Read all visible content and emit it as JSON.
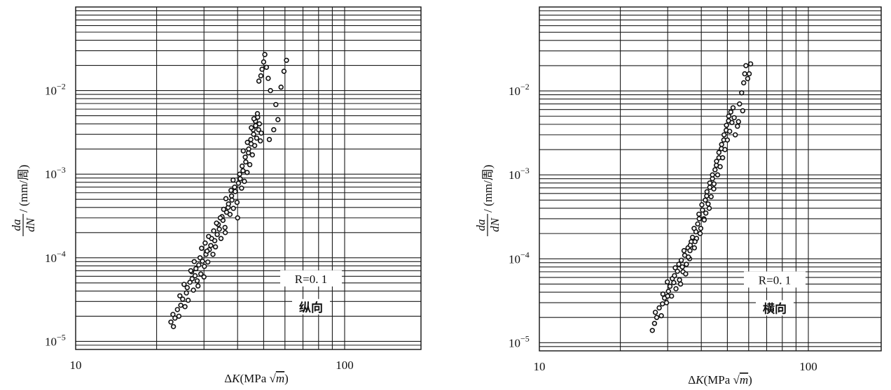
{
  "chart_data": [
    {
      "type": "scatter",
      "xscale": "log",
      "yscale": "log",
      "xlim": [
        10,
        200
      ],
      "ylim": [
        8e-06,
        0.1
      ],
      "xticks": [
        "10",
        "100"
      ],
      "yticks": [
        {
          "base": "10",
          "exp": "−5"
        },
        {
          "base": "10",
          "exp": "−4"
        },
        {
          "base": "10",
          "exp": "−3"
        },
        {
          "base": "10",
          "exp": "−2"
        }
      ],
      "xlabel": {
        "prefix": "Δ",
        "var": "K",
        "unit": "(MPa ",
        "radicand": "m",
        "close": ")"
      },
      "ylabel": {
        "num": "da",
        "den": "dN",
        "unit": " / (mm/周)"
      },
      "annotation": {
        "line1": "R=0. 1",
        "line2": "纵向"
      },
      "grid": true,
      "legend": "none",
      "points": [
        [
          22.6,
          1.7e-05
        ],
        [
          23.1,
          1.5e-05
        ],
        [
          23.4,
          1.9e-05
        ],
        [
          23.0,
          2.1e-05
        ],
        [
          23.9,
          2.4e-05
        ],
        [
          24.2,
          2e-05
        ],
        [
          24.6,
          2.7e-05
        ],
        [
          25.0,
          3.2e-05
        ],
        [
          24.4,
          3.5e-05
        ],
        [
          25.5,
          2.6e-05
        ],
        [
          25.8,
          3.8e-05
        ],
        [
          26.0,
          4.4e-05
        ],
        [
          25.3,
          4.8e-05
        ],
        [
          26.6,
          5.1e-05
        ],
        [
          26.2,
          3.1e-05
        ],
        [
          27.1,
          5.6e-05
        ],
        [
          27.4,
          4.1e-05
        ],
        [
          27.8,
          6.1e-05
        ],
        [
          27.0,
          6.8e-05
        ],
        [
          28.3,
          5.3e-05
        ],
        [
          28.0,
          7.4e-05
        ],
        [
          28.7,
          8.2e-05
        ],
        [
          29.2,
          6.4e-05
        ],
        [
          28.5,
          4.6e-05
        ],
        [
          29.6,
          9.1e-05
        ],
        [
          30.1,
          7.9e-05
        ],
        [
          29.0,
          0.0001
        ],
        [
          30.5,
          0.00011
        ],
        [
          31.0,
          8.9e-05
        ],
        [
          30.0,
          5.9e-05
        ],
        [
          31.4,
          0.000125
        ],
        [
          31.8,
          0.00014
        ],
        [
          30.8,
          0.00012
        ],
        [
          32.4,
          0.00011
        ],
        [
          32.9,
          0.00016
        ],
        [
          32.0,
          0.00017
        ],
        [
          33.6,
          0.00019
        ],
        [
          33.1,
          0.000135
        ],
        [
          34.2,
          0.00022
        ],
        [
          34.7,
          0.00017
        ],
        [
          33.9,
          0.00025
        ],
        [
          35.3,
          0.00028
        ],
        [
          35.9,
          0.00023
        ],
        [
          35.0,
          0.00031
        ],
        [
          36.4,
          0.00035
        ],
        [
          36.0,
          0.0002
        ],
        [
          36.9,
          0.0004
        ],
        [
          37.5,
          0.00033
        ],
        [
          37.0,
          0.00044
        ],
        [
          38.1,
          0.00049
        ],
        [
          38.6,
          0.00039
        ],
        [
          38.0,
          0.00055
        ],
        [
          39.2,
          0.00062
        ],
        [
          39.8,
          0.00046
        ],
        [
          39.0,
          0.0007
        ],
        [
          40.3,
          0.00078
        ],
        [
          40.0,
          0.0003
        ],
        [
          40.9,
          0.00088
        ],
        [
          41.4,
          0.00068
        ],
        [
          40.7,
          0.001
        ],
        [
          41.9,
          0.0011
        ],
        [
          42.4,
          0.00082
        ],
        [
          41.6,
          0.00125
        ],
        [
          42.9,
          0.0014
        ],
        [
          43.4,
          0.00105
        ],
        [
          42.7,
          0.0016
        ],
        [
          43.9,
          0.0018
        ],
        [
          44.4,
          0.0013
        ],
        [
          44.0,
          0.002
        ],
        [
          44.9,
          0.0023
        ],
        [
          45.4,
          0.0017
        ],
        [
          44.8,
          0.0026
        ],
        [
          45.9,
          0.003
        ],
        [
          46.3,
          0.0022
        ],
        [
          45.7,
          0.0034
        ],
        [
          46.7,
          0.0038
        ],
        [
          47.1,
          0.0027
        ],
        [
          46.6,
          0.0043
        ],
        [
          47.5,
          0.0048
        ],
        [
          47.9,
          0.0034
        ],
        [
          47.4,
          0.0053
        ],
        [
          48.2,
          0.004
        ],
        [
          48.6,
          0.0025
        ],
        [
          49.0,
          0.0031
        ],
        [
          46.0,
          0.0046
        ],
        [
          45.0,
          0.0036
        ],
        [
          43.5,
          0.0024
        ],
        [
          42.0,
          0.0019
        ],
        [
          38.5,
          0.00085
        ],
        [
          37.8,
          0.00064
        ],
        [
          36.2,
          0.00051
        ],
        [
          35.5,
          0.00038
        ],
        [
          34.5,
          0.0003
        ],
        [
          33.4,
          0.00026
        ],
        [
          32.6,
          0.00021
        ],
        [
          31.2,
          0.00018
        ],
        [
          30.3,
          0.00015
        ],
        [
          29.4,
          0.00013
        ],
        [
          27.6,
          9e-05
        ],
        [
          26.8,
          7e-05
        ],
        [
          48.0,
          0.013
        ],
        [
          48.8,
          0.015
        ],
        [
          49.3,
          0.018
        ],
        [
          50.0,
          0.022
        ],
        [
          50.5,
          0.027
        ],
        [
          51.2,
          0.019
        ],
        [
          52.0,
          0.014
        ],
        [
          53.0,
          0.01
        ],
        [
          55.5,
          0.0068
        ],
        [
          58.0,
          0.011
        ],
        [
          59.5,
          0.017
        ],
        [
          60.8,
          0.023
        ],
        [
          56.5,
          0.0045
        ],
        [
          54.5,
          0.0034
        ],
        [
          52.5,
          0.0026
        ]
      ]
    },
    {
      "type": "scatter",
      "xscale": "log",
      "yscale": "log",
      "xlim": [
        10,
        200
      ],
      "ylim": [
        8e-06,
        0.1
      ],
      "xticks": [
        "10",
        "100"
      ],
      "yticks": [
        {
          "base": "10",
          "exp": "−5"
        },
        {
          "base": "10",
          "exp": "−4"
        },
        {
          "base": "10",
          "exp": "−3"
        },
        {
          "base": "10",
          "exp": "−2"
        }
      ],
      "xlabel": {
        "prefix": "Δ",
        "var": "K",
        "unit": "(MPa ",
        "radicand": "m",
        "close": ")"
      },
      "ylabel": {
        "num": "da",
        "den": "dN",
        "unit": " / (mm/周)"
      },
      "annotation": {
        "line1": "R=0. 1",
        "line2": "横向"
      },
      "grid": true,
      "legend": "none",
      "points": [
        [
          26.3,
          1.4e-05
        ],
        [
          26.8,
          1.7e-05
        ],
        [
          27.3,
          2e-05
        ],
        [
          27.0,
          2.3e-05
        ],
        [
          27.9,
          2.6e-05
        ],
        [
          28.4,
          2.1e-05
        ],
        [
          28.7,
          2.9e-05
        ],
        [
          29.2,
          3.4e-05
        ],
        [
          28.8,
          3.8e-05
        ],
        [
          29.7,
          3e-05
        ],
        [
          30.2,
          4.1e-05
        ],
        [
          30.6,
          4.7e-05
        ],
        [
          29.9,
          5.3e-05
        ],
        [
          31.2,
          5.8e-05
        ],
        [
          31.0,
          3.6e-05
        ],
        [
          31.8,
          6.3e-05
        ],
        [
          32.2,
          4.4e-05
        ],
        [
          32.6,
          7.1e-05
        ],
        [
          32.0,
          7.8e-05
        ],
        [
          33.2,
          5.6e-05
        ],
        [
          33.0,
          8.6e-05
        ],
        [
          33.7,
          9.6e-05
        ],
        [
          34.2,
          7e-05
        ],
        [
          33.5,
          5e-05
        ],
        [
          34.7,
          0.00011
        ],
        [
          35.2,
          8.6e-05
        ],
        [
          34.5,
          0.000125
        ],
        [
          35.7,
          0.000135
        ],
        [
          36.2,
          0.0001
        ],
        [
          35.0,
          6.6e-05
        ],
        [
          36.7,
          0.00016
        ],
        [
          37.1,
          0.00018
        ],
        [
          36.4,
          0.000145
        ],
        [
          37.7,
          0.000135
        ],
        [
          38.2,
          0.00021
        ],
        [
          37.6,
          0.00023
        ],
        [
          38.8,
          0.00026
        ],
        [
          38.4,
          0.000175
        ],
        [
          39.3,
          0.0003
        ],
        [
          39.8,
          0.00023
        ],
        [
          39.2,
          0.00034
        ],
        [
          40.4,
          0.00038
        ],
        [
          40.9,
          0.0003
        ],
        [
          40.2,
          0.00044
        ],
        [
          41.4,
          0.0005
        ],
        [
          41.0,
          0.00029
        ],
        [
          41.9,
          0.00056
        ],
        [
          42.4,
          0.00045
        ],
        [
          42.0,
          0.00063
        ],
        [
          43.0,
          0.00071
        ],
        [
          43.5,
          0.00055
        ],
        [
          43.0,
          0.0008
        ],
        [
          44.0,
          0.0009
        ],
        [
          44.5,
          0.00068
        ],
        [
          44.0,
          0.001
        ],
        [
          45.0,
          0.00115
        ],
        [
          44.6,
          0.00078
        ],
        [
          45.5,
          0.0013
        ],
        [
          46.0,
          0.001
        ],
        [
          45.6,
          0.00145
        ],
        [
          46.5,
          0.0016
        ],
        [
          47.0,
          0.00125
        ],
        [
          46.5,
          0.00185
        ],
        [
          47.5,
          0.00205
        ],
        [
          48.0,
          0.0016
        ],
        [
          47.6,
          0.0023
        ],
        [
          48.5,
          0.0026
        ],
        [
          49.0,
          0.002
        ],
        [
          48.6,
          0.003
        ],
        [
          49.5,
          0.0034
        ],
        [
          50.0,
          0.0026
        ],
        [
          49.6,
          0.0039
        ],
        [
          50.5,
          0.0044
        ],
        [
          51.0,
          0.0033
        ],
        [
          50.6,
          0.005
        ],
        [
          51.5,
          0.0056
        ],
        [
          52.0,
          0.0042
        ],
        [
          52.5,
          0.0063
        ],
        [
          53.0,
          0.0048
        ],
        [
          53.5,
          0.003
        ],
        [
          54.5,
          0.0038
        ],
        [
          55.5,
          0.007
        ],
        [
          56.5,
          0.0095
        ],
        [
          57.5,
          0.0125
        ],
        [
          58.0,
          0.016
        ],
        [
          58.6,
          0.02
        ],
        [
          59.5,
          0.014
        ],
        [
          60.3,
          0.016
        ],
        [
          61.0,
          0.021
        ],
        [
          57.0,
          0.0058
        ],
        [
          55.0,
          0.0043
        ],
        [
          42.8,
          0.0004
        ],
        [
          41.6,
          0.00035
        ],
        [
          39.6,
          0.0002
        ],
        [
          37.9,
          0.00016
        ],
        [
          36.3,
          0.000125
        ],
        [
          35.8,
          0.000105
        ],
        [
          34.0,
          8e-05
        ],
        [
          31.6,
          5.2e-05
        ],
        [
          30.0,
          3.6e-05
        ]
      ]
    }
  ]
}
